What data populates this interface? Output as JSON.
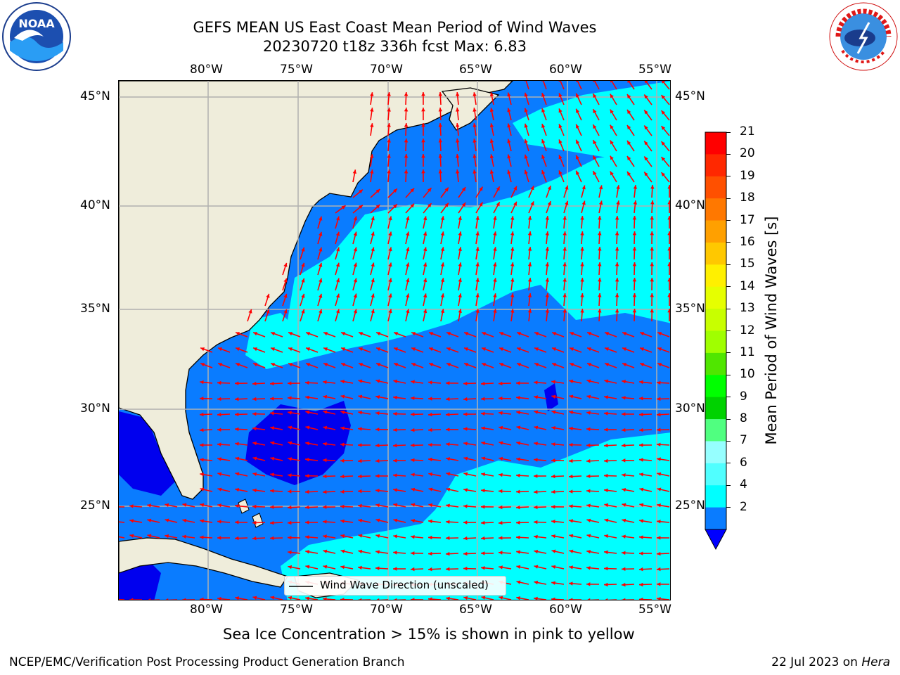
{
  "header": {
    "title_line1": "GEFS MEAN US East Coast Mean Period of Wind Waves",
    "title_line2": "20230720 t18z 336h fcst   Max: 6.83"
  },
  "logos": {
    "left": "noaa-logo",
    "left_text": "NOAA",
    "right": "nws-logo",
    "right_text": "NATIONAL WEATHER SERVICE"
  },
  "map": {
    "lon_ticks": [
      "80°W",
      "75°W",
      "70°W",
      "65°W",
      "60°W",
      "55°W"
    ],
    "lat_ticks": [
      "45°N",
      "40°N",
      "35°N",
      "30°N",
      "25°N"
    ],
    "lon_range": [
      -85,
      -54.3
    ],
    "lat_range": [
      20.5,
      45.8
    ],
    "grid": true,
    "legend_label": "Wind Wave Direction (unscaled)",
    "colors": {
      "land": "#efeddb",
      "ocean_2_4": "#0a7cff",
      "ocean_4_6": "#00ffff",
      "ocean_lt2": "#0000ee",
      "arrow": "#ff0000",
      "grid": "#b0b0b0"
    }
  },
  "colorbar": {
    "label": "Mean Period of Wind Waves [s]",
    "ticks": [
      "21",
      "20",
      "19",
      "18",
      "17",
      "16",
      "15",
      "14",
      "13",
      "12",
      "11",
      "10",
      "9",
      "8",
      "7",
      "6",
      "4",
      "2"
    ],
    "colors": [
      "#ff0000",
      "#ff2800",
      "#ff5000",
      "#ff7800",
      "#ffa000",
      "#ffc800",
      "#fff000",
      "#e6ff00",
      "#c8ff00",
      "#a0ff00",
      "#50e600",
      "#00ff00",
      "#00d200",
      "#50ff80",
      "#96ffff",
      "#50ffff",
      "#00ffff",
      "#0a7cff"
    ],
    "under_color": "#0000ff"
  },
  "sea_ice_note": "Sea Ice Concentration > 15% is shown in pink to yellow",
  "footer": {
    "left": "NCEP/EMC/Verification Post Processing Product Generation Branch",
    "right_date": "22 Jul 2023 on ",
    "right_host": "Hera"
  }
}
